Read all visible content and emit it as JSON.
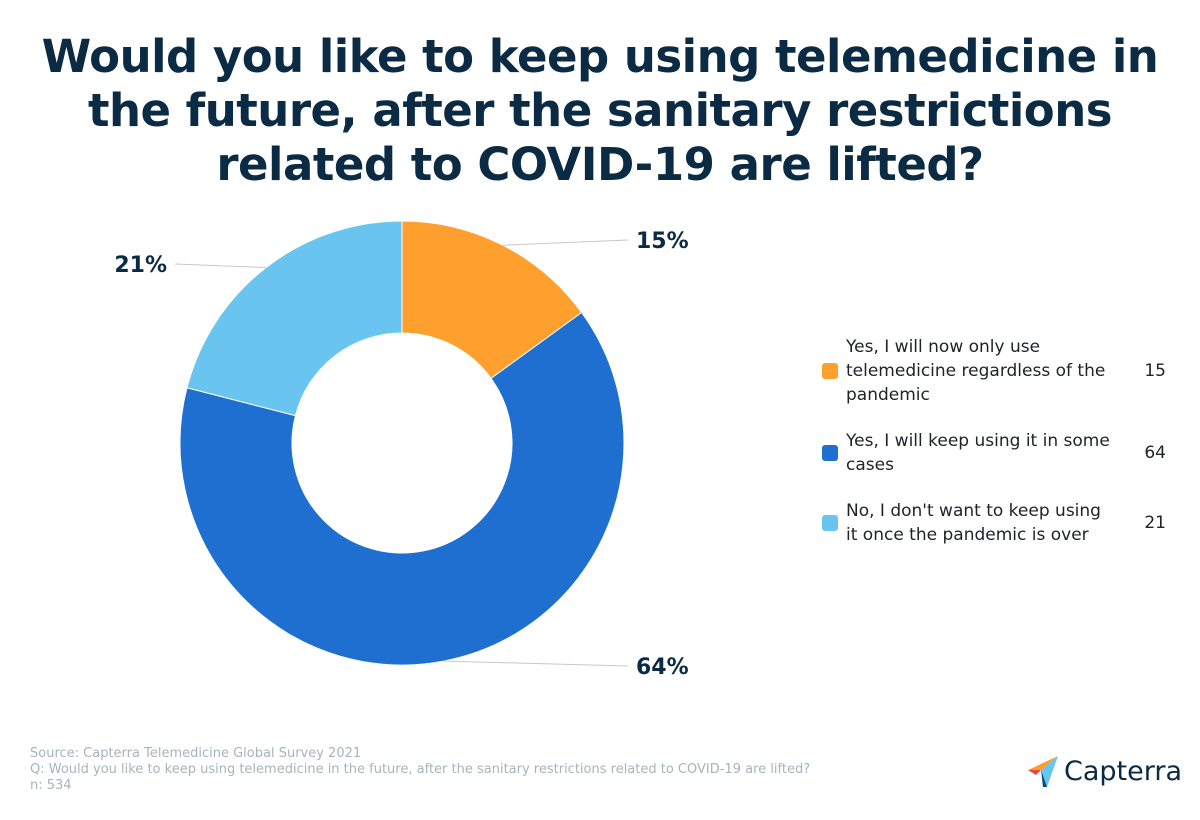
{
  "chart_data": {
    "type": "pie",
    "title": "Would you like to keep using telemedicine in the future, after the sanitary restrictions related to COVID-19 are lifted?",
    "categories": [
      "Yes, I will now only use telemedicine regardless of the pandemic",
      "Yes, I will keep using it in some cases",
      "No, I don't want to keep using it once the pandemic is over"
    ],
    "values": [
      15,
      64,
      21
    ],
    "data_labels": [
      "15%",
      "64%",
      "21%"
    ],
    "colors": [
      "#ff9f2d",
      "#1f6fd1",
      "#69c5ef"
    ],
    "donut": true,
    "legend_position": "right"
  },
  "footer": {
    "source": "Source: Capterra Telemedicine Global Survey 2021",
    "question": "Q: Would you like to keep using telemedicine in the future, after the sanitary restrictions related to COVID-19 are lifted?",
    "n": "n: 534"
  },
  "brand": {
    "name": "Capterra",
    "logo_colors": [
      "#ff9d28",
      "#68c5ed",
      "#044d80",
      "#e54747"
    ]
  }
}
